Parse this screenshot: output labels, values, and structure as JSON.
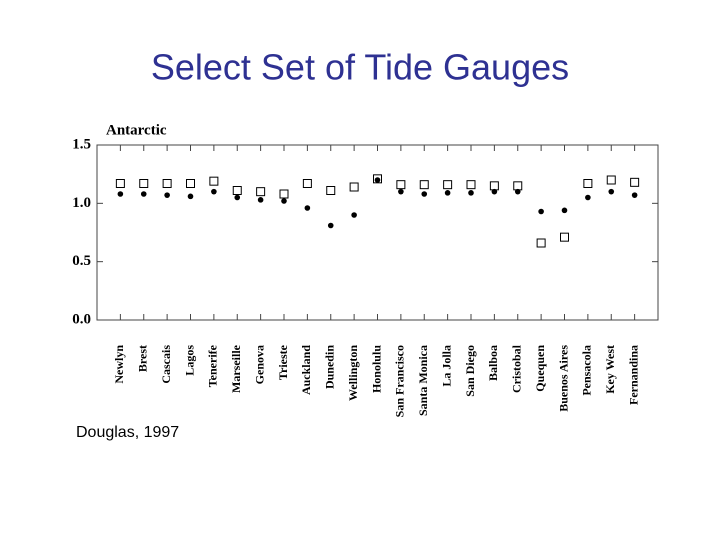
{
  "title": "Select Set of Tide Gauges",
  "chart_data": {
    "type": "scatter",
    "panel_label": "Antarctic",
    "categories": [
      "Newlyn",
      "Brest",
      "Cascais",
      "Lagos",
      "Tenerife",
      "Marseille",
      "Genova",
      "Trieste",
      "Auckland",
      "Dunedin",
      "Wellington",
      "Honolulu",
      "San Francisco",
      "Santa Monica",
      "La Jolla",
      "San Diego",
      "Balboa",
      "Cristobal",
      "Quequen",
      "Buenos Aires",
      "Pensacola",
      "Key West",
      "Fernandina"
    ],
    "series": [
      {
        "marker": "square",
        "color": "#000000",
        "values": [
          1.17,
          1.17,
          1.17,
          1.17,
          1.19,
          1.11,
          1.1,
          1.08,
          1.17,
          1.11,
          1.14,
          1.21,
          1.16,
          1.16,
          1.16,
          1.16,
          1.15,
          1.15,
          0.66,
          0.71,
          1.17,
          1.2,
          1.18
        ]
      },
      {
        "marker": "circle",
        "color": "#000000",
        "values": [
          1.08,
          1.08,
          1.07,
          1.06,
          1.1,
          1.05,
          1.03,
          1.02,
          0.96,
          0.81,
          0.9,
          1.2,
          1.1,
          1.08,
          1.09,
          1.09,
          1.1,
          1.1,
          0.93,
          0.94,
          1.05,
          1.1,
          1.07
        ]
      }
    ],
    "ylim": [
      0,
      1.5
    ],
    "yticks": [
      {
        "value": 0,
        "label": "0.0"
      },
      0.5,
      {
        "value": 1,
        "label": "1.0"
      },
      1.5
    ],
    "grid": false,
    "annotation": "Douglas, 1997"
  }
}
